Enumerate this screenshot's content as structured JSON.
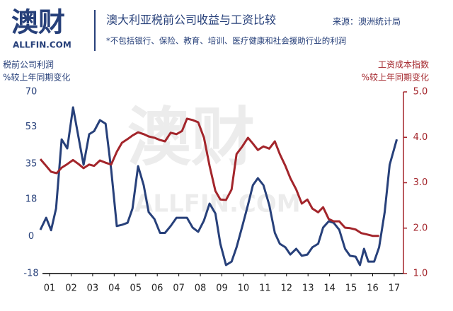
{
  "chart_data": {
    "type": "line",
    "logo": "澳财",
    "logo_sub": "ALLFIN.COM",
    "title": "澳大利亚税前公司收益与工资比较",
    "source": "来源：澳洲统计局",
    "subtitle": "*不包括银行、保险、教育、培训、医疗健康和社会援助行业的利润",
    "ylabel": [
      "税前公司利润",
      "%较上年同期变化"
    ],
    "y2label": [
      "工资成本指数",
      "%较上年同期变化"
    ],
    "watermark": "澳财",
    "watermark_sub": "ALLFIN.COM",
    "xlim": [
      0.67,
      17.43
    ],
    "xticks": [
      {
        "value": 1,
        "label": "01"
      },
      {
        "value": 2,
        "label": "02"
      },
      {
        "value": 3,
        "label": "03"
      },
      {
        "value": 4,
        "label": "04"
      },
      {
        "value": 5,
        "label": "05"
      },
      {
        "value": 6,
        "label": "06"
      },
      {
        "value": 7,
        "label": "07"
      },
      {
        "value": 8,
        "label": "08"
      },
      {
        "value": 9,
        "label": "09"
      },
      10,
      11,
      12,
      13,
      14,
      15,
      16,
      17
    ],
    "ylim": [
      -18,
      70
    ],
    "yticks": [
      -18,
      0,
      18,
      35,
      53,
      70
    ],
    "y2lim": [
      1,
      5
    ],
    "y2ticks": [
      {
        "value": 1,
        "label": "1.0"
      },
      {
        "value": 2,
        "label": "2.0"
      },
      {
        "value": 3,
        "label": "3.0"
      },
      {
        "value": 4,
        "label": "4.0"
      },
      {
        "value": 5,
        "label": "5.0"
      }
    ],
    "series": [
      {
        "color": "#27407a",
        "axis": "y",
        "x": [
          0.57,
          0.84,
          1.07,
          1.3,
          1.56,
          1.82,
          2.09,
          2.35,
          2.58,
          2.84,
          3.07,
          3.34,
          3.6,
          3.86,
          4.12,
          4.36,
          4.62,
          4.85,
          5.11,
          5.37,
          5.6,
          5.87,
          6.13,
          6.36,
          6.62,
          6.89,
          7.15,
          7.38,
          7.64,
          7.9,
          8.17,
          8.43,
          8.7,
          8.93,
          9.19,
          9.45,
          9.68,
          9.95,
          10.21,
          10.44,
          10.67,
          10.93,
          11.2,
          11.46,
          11.69,
          11.95,
          12.18,
          12.45,
          12.71,
          12.97,
          13.2,
          13.47,
          13.7,
          13.96,
          14.19,
          14.45,
          14.72,
          14.95,
          15.21,
          15.41,
          15.6,
          15.8,
          16.07,
          16.3,
          16.56,
          16.79,
          17.12
        ],
        "values": [
          3.2,
          9,
          3,
          13.5,
          47,
          42.6,
          62.5,
          47.7,
          34.7,
          49.5,
          51,
          56.3,
          54.6,
          32.3,
          5,
          5.6,
          6.6,
          13.5,
          34,
          24.8,
          11.8,
          8.4,
          1.7,
          1.7,
          5,
          9,
          9,
          9,
          4.3,
          2.2,
          7.7,
          15.9,
          11.1,
          -3.6,
          -13.9,
          -12.2,
          -5.3,
          5,
          15.2,
          24.8,
          28.2,
          24.8,
          15.2,
          1.7,
          -3.6,
          -5.3,
          -8.8,
          -6,
          -9.4,
          -8.8,
          -5.3,
          -3.6,
          4.3,
          7.3,
          6.6,
          3.2,
          -6,
          -9.4,
          -9.8,
          -13.9,
          -6,
          -12.2,
          -12.2,
          -5.3,
          11.8,
          34.7,
          47
        ]
      },
      {
        "color": "#a3252b",
        "axis": "y2",
        "x": [
          0.57,
          0.84,
          1.07,
          1.33,
          1.56,
          1.82,
          2.09,
          2.35,
          2.58,
          2.84,
          3.07,
          3.34,
          3.6,
          3.86,
          4.12,
          4.36,
          4.62,
          4.85,
          5.11,
          5.37,
          5.6,
          5.87,
          6.13,
          6.36,
          6.62,
          6.89,
          7.15,
          7.38,
          7.64,
          7.9,
          8.17,
          8.43,
          8.7,
          8.93,
          9.19,
          9.45,
          9.68,
          9.95,
          10.21,
          10.44,
          10.67,
          10.93,
          11.2,
          11.46,
          11.69,
          11.95,
          12.18,
          12.45,
          12.71,
          12.97,
          13.2,
          13.47,
          13.7,
          13.96,
          14.19,
          14.45,
          14.72,
          14.95,
          15.21,
          15.47,
          15.74,
          16.0,
          16.3
        ],
        "values": [
          3.52,
          3.37,
          3.24,
          3.21,
          3.33,
          3.41,
          3.5,
          3.41,
          3.32,
          3.4,
          3.37,
          3.49,
          3.44,
          3.4,
          3.68,
          3.88,
          3.96,
          4.04,
          4.11,
          4.07,
          4.02,
          3.99,
          3.94,
          3.91,
          4.1,
          4.07,
          4.14,
          4.41,
          4.38,
          4.33,
          3.99,
          3.37,
          2.82,
          2.63,
          2.62,
          2.85,
          3.63,
          3.8,
          3.99,
          3.86,
          3.72,
          3.8,
          3.75,
          3.91,
          3.63,
          3.37,
          3.1,
          2.85,
          2.54,
          2.63,
          2.43,
          2.35,
          2.46,
          2.2,
          2.15,
          2.15,
          2.01,
          2.0,
          1.97,
          1.89,
          1.86,
          1.83,
          1.83
        ]
      }
    ]
  }
}
